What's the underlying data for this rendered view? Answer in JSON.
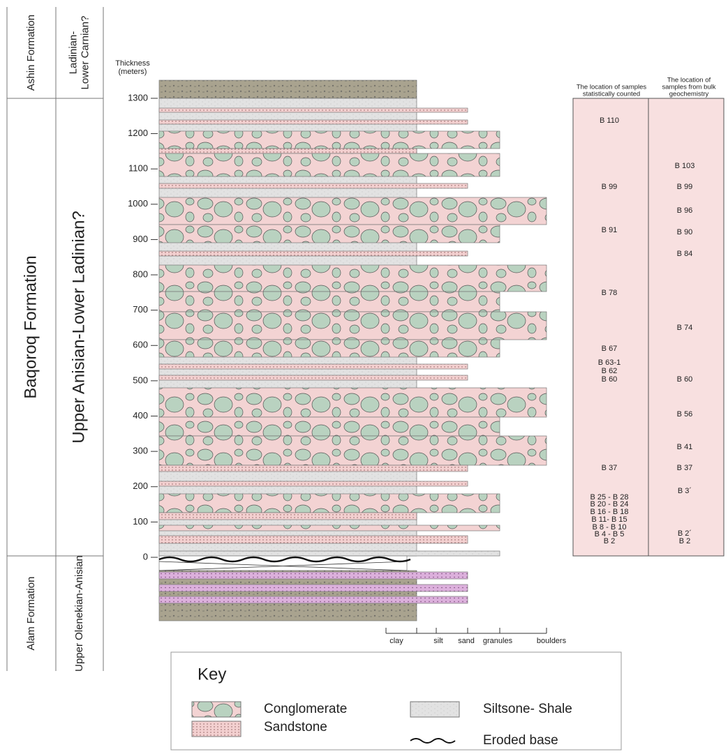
{
  "formations": [
    {
      "name": "Ashin Formation",
      "age": [
        "Ladinian-",
        "Lower Carnian?"
      ]
    },
    {
      "name": "Baqoroq Formation",
      "age": [
        "Upper Anisian-Lower Ladinian?"
      ]
    },
    {
      "name": "Alam Formation",
      "age": [
        "Upper Olenekian-Anisian"
      ]
    }
  ],
  "axis": {
    "title": [
      "Thickness",
      "(meters)"
    ],
    "ticks": [
      0,
      100,
      200,
      300,
      400,
      500,
      600,
      700,
      800,
      900,
      1000,
      1100,
      1200,
      1300
    ]
  },
  "grain_scale": [
    "clay",
    "silt",
    "sand",
    "granules",
    "boulders"
  ],
  "samples": {
    "headers": [
      [
        "The location of samples",
        "statistically counted"
      ],
      [
        "The location of",
        "samples from bulk",
        "geochemistry"
      ]
    ],
    "counted": [
      "B 110",
      "B 99",
      "B 91",
      "B 78",
      "B 67",
      "B 63-1",
      "B 62",
      "B 60",
      "B 37",
      "B 25 - B 28",
      "B 20 - B 24",
      "B 16 - B 18",
      "B 11- B 15",
      "B 8 - B 10",
      "B 4 - B 5",
      "B 2"
    ],
    "bulk": [
      "B 103",
      "B 99",
      "B 96",
      "B 90",
      "B 84",
      "B 74",
      "B 60",
      "B 56",
      "B 41",
      "B 37",
      "B 3´",
      "B 2´",
      "B 2"
    ]
  },
  "key": {
    "title": "Key",
    "items": [
      "Conglomerate",
      "Siltsone- Shale",
      "Sandstone",
      "Eroded base"
    ]
  }
}
